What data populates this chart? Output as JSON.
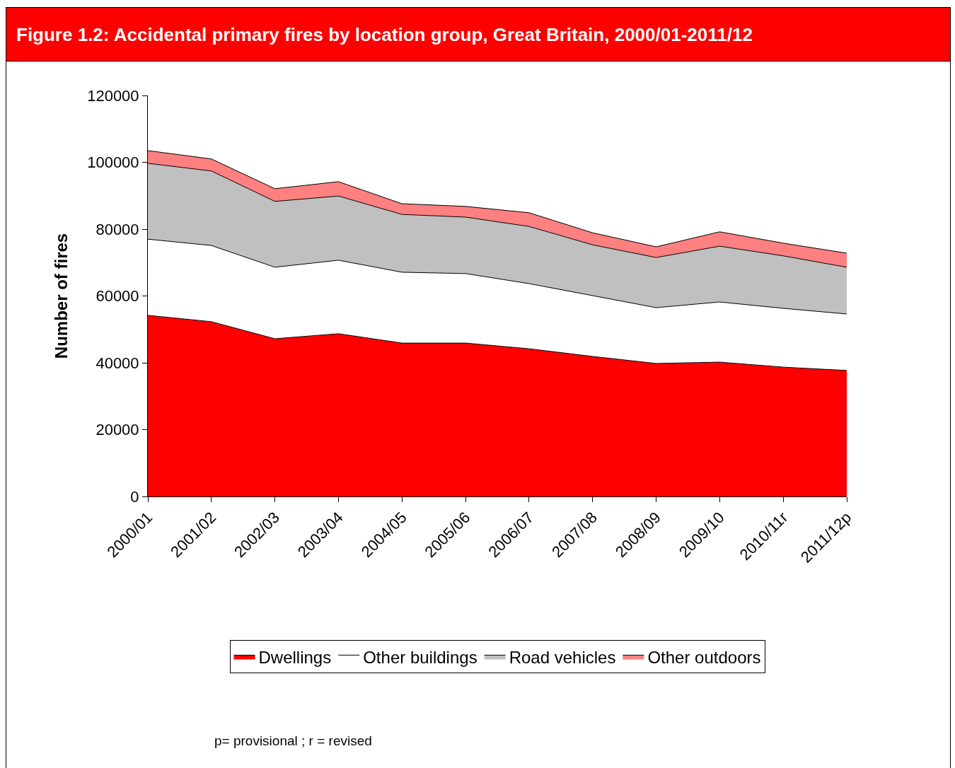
{
  "chart_data": {
    "type": "area",
    "stacked": true,
    "title": "Figure 1.2:  Accidental primary fires by location group, Great Britain, 2000/01-2011/12",
    "ylabel": "Number of fires",
    "categories": [
      "2000/01",
      "2001/02",
      "2002/03",
      "2003/04",
      "2004/05",
      "2005/06",
      "2006/07",
      "2007/08",
      "2008/09",
      "2009/10",
      "2010/11r",
      "2011/12p"
    ],
    "series": [
      {
        "name": "Dwellings",
        "color": "#ff0000",
        "values": [
          54200,
          52300,
          47200,
          48700,
          45900,
          45900,
          44200,
          41900,
          39800,
          40200,
          38700,
          37700
        ]
      },
      {
        "name": "Other buildings",
        "color": "#ffffff",
        "values": [
          22800,
          22800,
          21400,
          22000,
          21200,
          20800,
          19500,
          18200,
          16700,
          18000,
          17600,
          16900
        ]
      },
      {
        "name": "Road vehicles",
        "color": "#c0c0c0",
        "values": [
          22700,
          22300,
          19700,
          19200,
          17300,
          16900,
          17100,
          15200,
          15000,
          16700,
          15700,
          14000
        ]
      },
      {
        "name": "Other outdoors",
        "color": "#ff8080",
        "values": [
          3800,
          3600,
          3800,
          4300,
          3200,
          3200,
          4100,
          3600,
          3200,
          4300,
          3800,
          4200
        ]
      }
    ],
    "ylim": [
      0,
      120000
    ],
    "yticks": [
      0,
      20000,
      40000,
      60000,
      80000,
      100000,
      120000
    ],
    "grid": false,
    "legend": "bottom",
    "annotations": [
      "p= provisional ; r = revised"
    ]
  }
}
